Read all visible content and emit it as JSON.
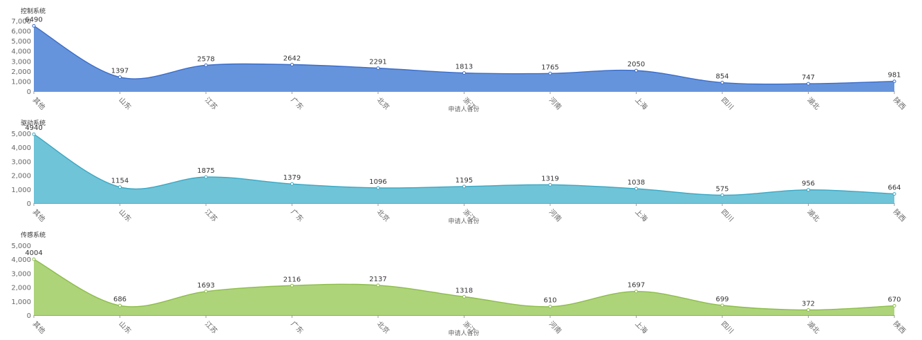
{
  "chart_data": [
    {
      "type": "area",
      "title": "控制系统",
      "xlabel": "申请人省份",
      "ylabel": "",
      "categories": [
        "其他",
        "山东",
        "江苏",
        "广东",
        "北京",
        "浙江",
        "河南",
        "上海",
        "四川",
        "湖北",
        "陕西"
      ],
      "values": [
        6490,
        1397,
        2578,
        2642,
        2291,
        1813,
        1765,
        2050,
        854,
        747,
        981
      ],
      "ylim": [
        0,
        7000
      ],
      "yticks": [
        0,
        1000,
        2000,
        3000,
        4000,
        5000,
        6000,
        7000
      ],
      "ytick_labels": [
        "0",
        "1,000",
        "2,000",
        "3,000",
        "4,000",
        "5,000",
        "6,000",
        "7,000"
      ],
      "fill_color": "#6694dc",
      "line_color": "#3a6cc8",
      "grid": false,
      "smooth": true
    },
    {
      "type": "area",
      "title": "驱动系统",
      "xlabel": "申请人省份",
      "ylabel": "",
      "categories": [
        "其他",
        "山东",
        "江苏",
        "广东",
        "北京",
        "浙江",
        "河南",
        "上海",
        "四川",
        "湖北",
        "陕西"
      ],
      "values": [
        4940,
        1154,
        1875,
        1379,
        1096,
        1195,
        1319,
        1038,
        575,
        956,
        664
      ],
      "ylim": [
        0,
        5000
      ],
      "yticks": [
        0,
        1000,
        2000,
        3000,
        4000,
        5000
      ],
      "ytick_labels": [
        "0",
        "1,000",
        "2,000",
        "3,000",
        "4,000",
        "5,000"
      ],
      "fill_color": "#6fc4d8",
      "line_color": "#3ba6c2",
      "grid": false,
      "smooth": true
    },
    {
      "type": "area",
      "title": "传感系统",
      "xlabel": "申请人省份",
      "ylabel": "",
      "categories": [
        "其他",
        "山东",
        "江苏",
        "广东",
        "北京",
        "浙江",
        "河南",
        "上海",
        "四川",
        "湖北",
        "陕西"
      ],
      "values": [
        4004,
        686,
        1693,
        2116,
        2137,
        1318,
        610,
        1697,
        699,
        372,
        670
      ],
      "ylim": [
        0,
        5000
      ],
      "yticks": [
        0,
        1000,
        2000,
        3000,
        4000,
        5000
      ],
      "ytick_labels": [
        "0",
        "1,000",
        "2,000",
        "3,000",
        "4,000",
        "5,000"
      ],
      "fill_color": "#aed47a",
      "line_color": "#8cbc4a",
      "grid": false,
      "smooth": true
    }
  ]
}
